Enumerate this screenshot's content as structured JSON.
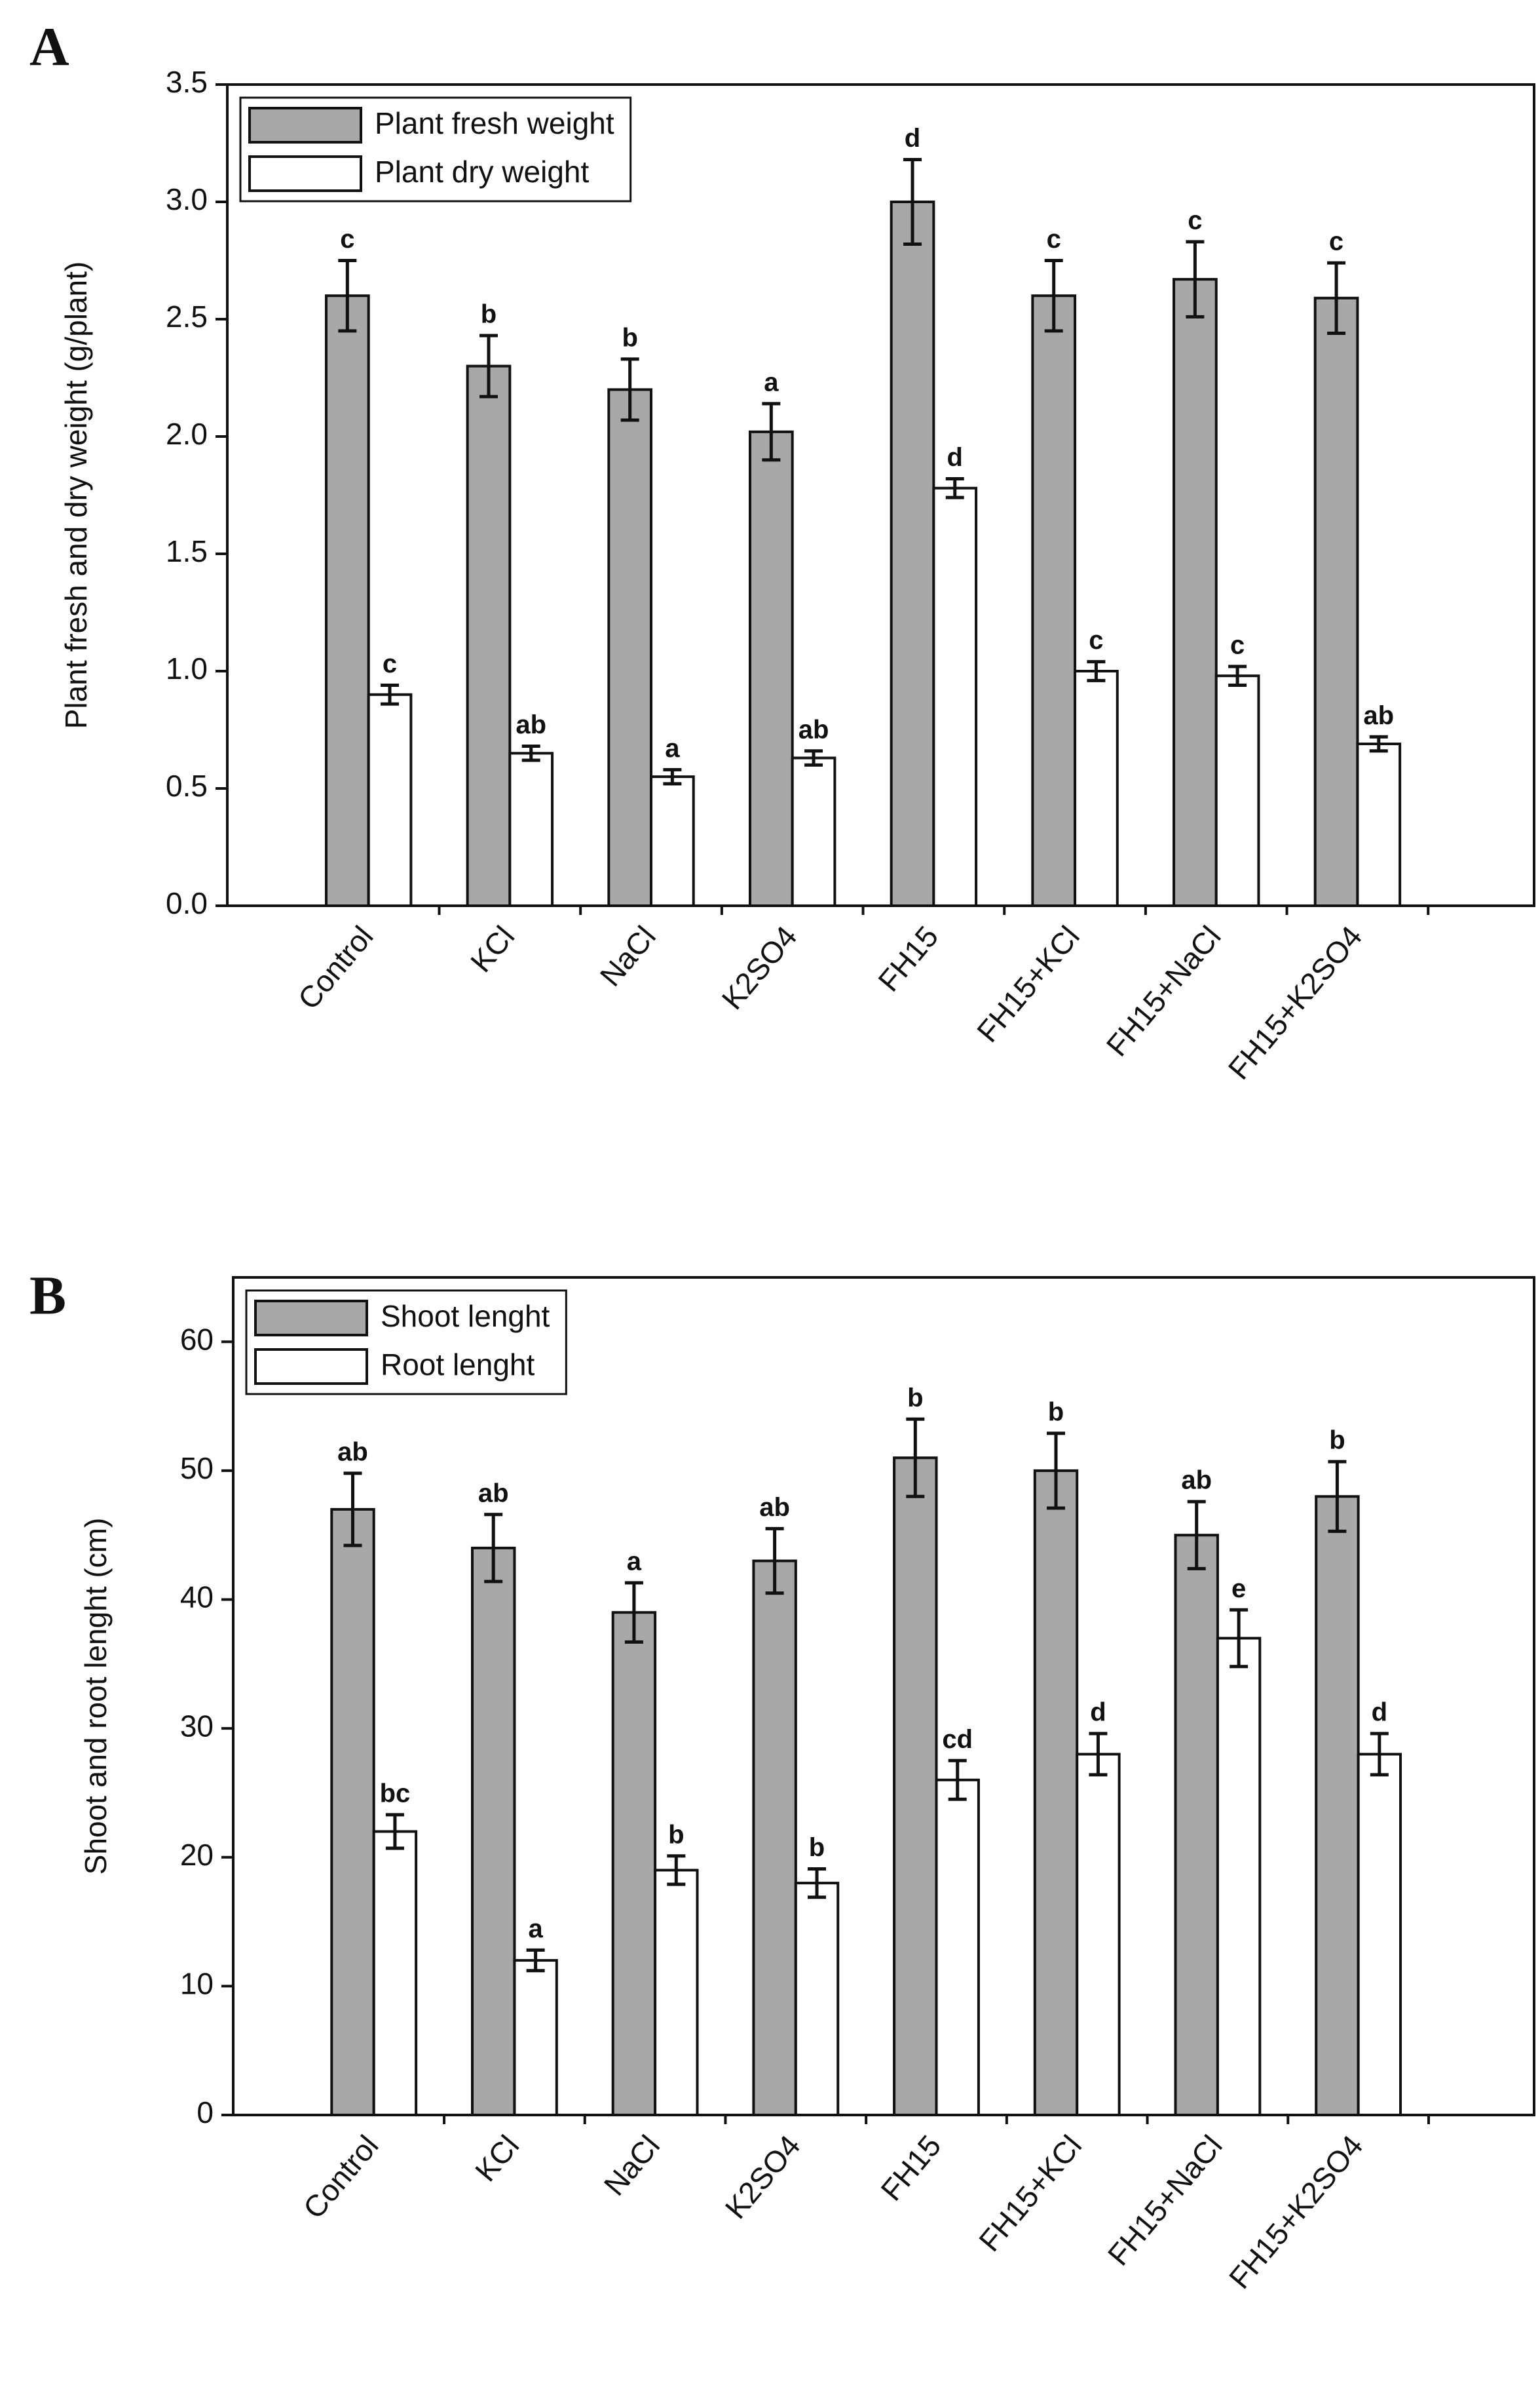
{
  "chart_data": [
    {
      "type": "bar",
      "panel": "A",
      "y_label": "Plant fresh and dry weight (g/plant)",
      "categories": [
        "Control",
        "KCl",
        "NaCl",
        "K2SO4",
        "FH15",
        "FH15+KCl",
        "FH15+NaCl",
        "FH15+K2SO4"
      ],
      "series": [
        {
          "name": "Plant fresh weight",
          "color": "#a8a8a8",
          "values": [
            2.6,
            2.3,
            2.2,
            2.02,
            3.0,
            2.6,
            2.67,
            2.59
          ],
          "errors": [
            0.15,
            0.13,
            0.13,
            0.12,
            0.18,
            0.15,
            0.16,
            0.15
          ],
          "labels": [
            "c",
            "b",
            "b",
            "a",
            "d",
            "c",
            "c",
            "c"
          ]
        },
        {
          "name": "Plant dry weight",
          "color": "#ffffff",
          "values": [
            0.9,
            0.65,
            0.55,
            0.63,
            1.78,
            1.0,
            0.98,
            0.69
          ],
          "errors": [
            0.04,
            0.03,
            0.03,
            0.03,
            0.04,
            0.04,
            0.04,
            0.03
          ],
          "labels": [
            "c",
            "ab",
            "a",
            "ab",
            "d",
            "c",
            "c",
            "ab"
          ]
        }
      ],
      "ylim": [
        0,
        3.5
      ],
      "yticks": [
        {
          "value": 0,
          "label": "0.0"
        },
        0.5,
        {
          "value": 1,
          "label": "1.0"
        },
        1.5,
        {
          "value": 2,
          "label": "2.0"
        },
        2.5,
        {
          "value": 3,
          "label": "3.0"
        },
        3.5
      ]
    },
    {
      "type": "bar",
      "panel": "B",
      "y_label": "Shoot and root lenght (cm)",
      "categories": [
        "Control",
        "KCl",
        "NaCl",
        "K2SO4",
        "FH15",
        "FH15+KCl",
        "FH15+NaCl",
        "FH15+K2SO4"
      ],
      "series": [
        {
          "name": "Shoot lenght",
          "color": "#a8a8a8",
          "values": [
            47,
            44,
            39,
            43,
            51,
            50,
            45,
            48
          ],
          "errors": [
            2.8,
            2.6,
            2.3,
            2.5,
            3.0,
            2.9,
            2.6,
            2.7
          ],
          "labels": [
            "ab",
            "ab",
            "a",
            "ab",
            "b",
            "b",
            "ab",
            "b"
          ]
        },
        {
          "name": "Root lenght",
          "color": "#ffffff",
          "values": [
            22,
            12,
            19,
            18,
            26,
            28,
            37,
            28
          ],
          "errors": [
            1.3,
            0.8,
            1.1,
            1.1,
            1.5,
            1.6,
            2.2,
            1.6
          ],
          "labels": [
            "bc",
            "a",
            "b",
            "b",
            "cd",
            "d",
            "e",
            "d"
          ]
        }
      ],
      "ylim": [
        0,
        65
      ],
      "yticks": [
        0,
        10,
        20,
        30,
        40,
        50,
        60
      ]
    }
  ]
}
